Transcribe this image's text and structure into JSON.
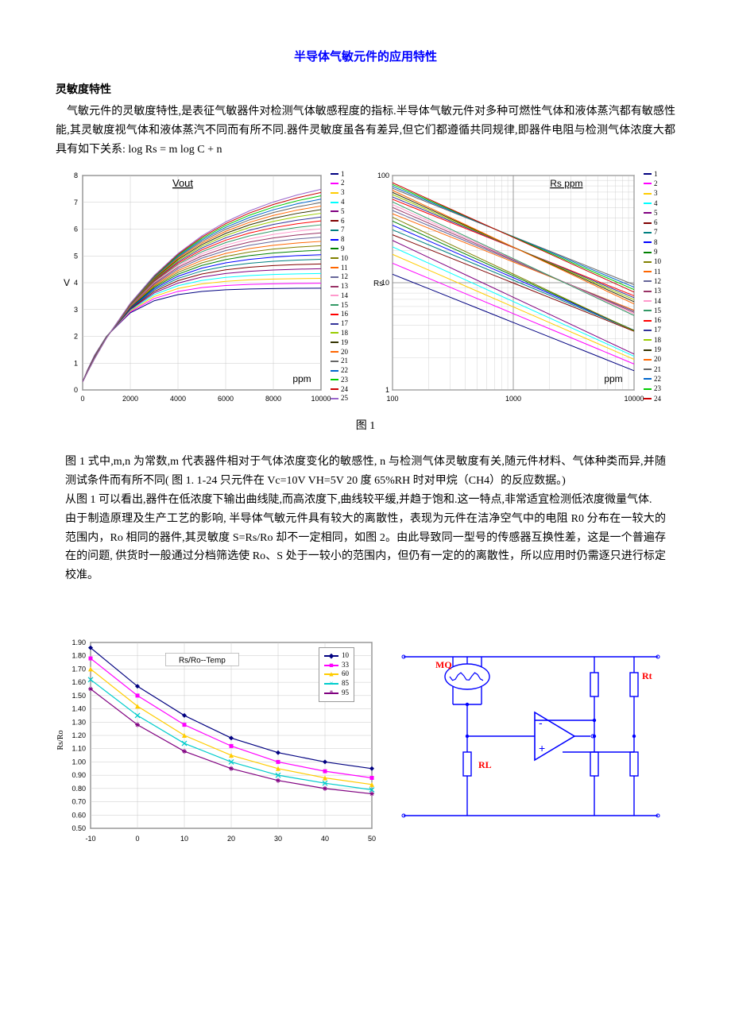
{
  "title": "半导体气敏元件的应用特性",
  "section1_heading": "灵敏度特性",
  "para1": "气敏元件的灵敏度特性,是表征气敏器件对检测气体敏感程度的指标.半导体气敏元件对多种可燃性气体和液体蒸汽都有敏感性能,其灵敏度视气体和液体蒸汽不同而有所不同.器件灵敏度虽各有差异,但它们都遵循共同规律,即器件电阻与检测气体浓度大都具有如下关系: log Rs = m log C + n",
  "fig1_caption": "图 1",
  "para2": "图 1 式中,m,n 为常数,m 代表器件相对于气体浓度变化的敏感性, n 与检测气体灵敏度有关,随元件材料、气体种类而异,并随测试条件而有所不同( 图 1. 1-24 只元件在 Vc=10V VH=5V 20 度 65%RH 时对甲烷（CH4）的反应数据。)",
  "para3": "从图 1 可以看出,器件在低浓度下输出曲线陡,而高浓度下,曲线较平缓,并趋于饱和.这一特点,非常适宜检测低浓度微量气体.",
  "para4": "由于制造原理及生产工艺的影响, 半导体气敏元件具有较大的离散性，表现为元件在洁净空气中的电阻 R0 分布在一较大的范围内，Ro 相同的器件,其灵敏度 S=Rs/Ro 却不一定相同，如图 2。由此导致同一型号的传感器互换性差，这是一个普遍存在的问题, 供货时一般通过分档筛选使 Ro、S 处于一较小的范围内，但仍有一定的的离散性，所以应用时仍需逐只进行标定校准。",
  "chart1": {
    "title": "Vout",
    "x_label": "ppm",
    "y_label": "V",
    "x_ticks": [
      0,
      2000,
      4000,
      6000,
      8000,
      10000
    ],
    "y_ticks": [
      0,
      1,
      2,
      3,
      4,
      5,
      6,
      7,
      8
    ],
    "grid_color": "#c8c8c8",
    "axis_color": "#000",
    "bg": "#ffffff",
    "series_colors": [
      "#000080",
      "#ff00ff",
      "#ffcc00",
      "#00ffff",
      "#800080",
      "#800000",
      "#008080",
      "#0000ff",
      "#008000",
      "#808000",
      "#ff6600",
      "#666699",
      "#993366",
      "#ff99cc",
      "#339966",
      "#ff0000",
      "#333399",
      "#99cc00",
      "#333300",
      "#ff6600",
      "#666666",
      "#0066cc",
      "#00cc00",
      "#cc0000",
      "#9966cc"
    ]
  },
  "chart2": {
    "title": "Rs ppm",
    "x_label": "ppm",
    "x_ticks": [
      100,
      1000,
      10000
    ],
    "y_ticks": [
      1,
      10,
      100
    ],
    "grid_color": "#c8c8c8",
    "axis_color": "#000",
    "bg": "#ffffff",
    "series_colors": [
      "#000080",
      "#ff00ff",
      "#ffcc00",
      "#00ffff",
      "#800080",
      "#800000",
      "#008080",
      "#0000ff",
      "#008000",
      "#808000",
      "#ff6600",
      "#666699",
      "#993366",
      "#ff99cc",
      "#339966",
      "#ff0000",
      "#333399",
      "#99cc00",
      "#333300",
      "#ff6600",
      "#666666",
      "#0066cc",
      "#00cc00",
      "#cc0000"
    ]
  },
  "chart3": {
    "title": "Rs/Ro--Temp",
    "y_label": "Rs/Ro",
    "x_ticks": [
      -10,
      0,
      10,
      20,
      30,
      40,
      50
    ],
    "y_ticks": [
      0.5,
      0.6,
      0.7,
      0.8,
      0.9,
      1.0,
      1.1,
      1.2,
      1.3,
      1.4,
      1.5,
      1.6,
      1.7,
      1.8,
      1.9
    ],
    "grid_color": "#c8c8c8",
    "axis_color": "#000",
    "bg": "#ffffff",
    "legend": [
      {
        "label": "10",
        "color": "#000080",
        "marker": "◆"
      },
      {
        "label": "33",
        "color": "#ff00ff",
        "marker": "■"
      },
      {
        "label": "60",
        "color": "#ffcc00",
        "marker": "▲"
      },
      {
        "label": "85",
        "color": "#00cccc",
        "marker": "×"
      },
      {
        "label": "95",
        "color": "#800080",
        "marker": "*"
      }
    ],
    "series": {
      "10": [
        1.86,
        1.57,
        1.35,
        1.18,
        1.07,
        1.0,
        0.95
      ],
      "33": [
        1.78,
        1.5,
        1.28,
        1.12,
        1.0,
        0.93,
        0.88
      ],
      "60": [
        1.7,
        1.42,
        1.2,
        1.05,
        0.95,
        0.88,
        0.83
      ],
      "85": [
        1.62,
        1.35,
        1.14,
        1.0,
        0.9,
        0.84,
        0.79
      ],
      "95": [
        1.55,
        1.28,
        1.08,
        0.95,
        0.86,
        0.8,
        0.76
      ]
    }
  },
  "circuit": {
    "labels": {
      "mq": "MQ",
      "rl": "RL",
      "rt": "Rt"
    },
    "wire_color": "#0000ff",
    "comp_color": "#0000ff",
    "text_color": "#ff0000"
  }
}
